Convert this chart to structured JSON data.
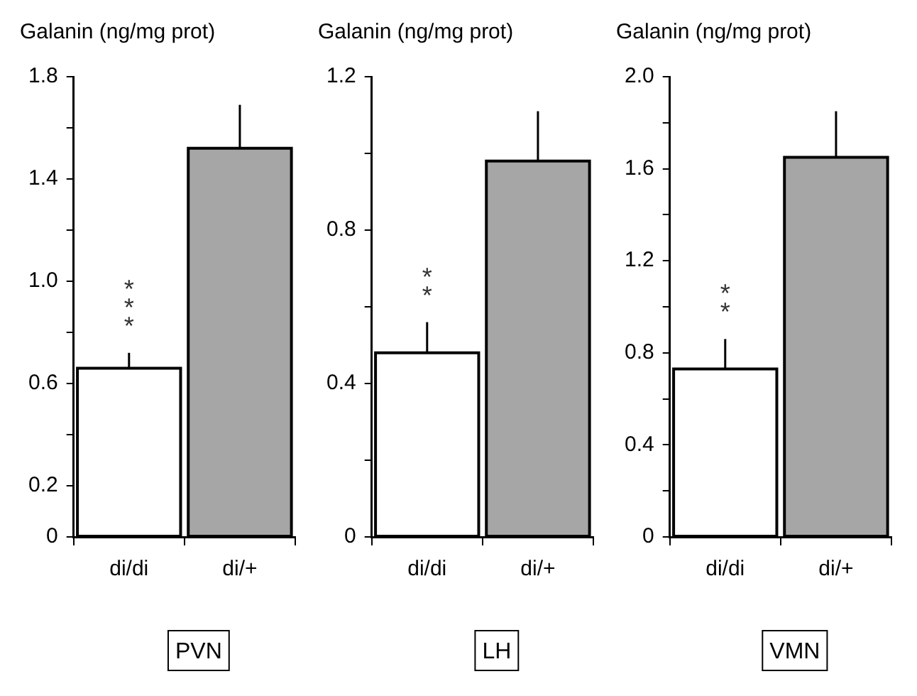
{
  "chart_data": [
    {
      "type": "bar",
      "title": "Galanin (ng/mg prot)",
      "xlabel": "PVN",
      "categories": [
        "di/di",
        "di/+"
      ],
      "values": [
        0.66,
        1.52
      ],
      "colors": [
        "#ffffff",
        "#a6a6a6"
      ],
      "errors": [
        [
          0.66,
          0.72
        ],
        [
          1.52,
          1.69
        ]
      ],
      "ylim": [
        0,
        1.8
      ],
      "yticks": [
        0,
        0.2,
        {
          "value": 0.4,
          "label": null
        },
        0.6,
        {
          "value": 0.8,
          "label": null
        },
        {
          "value": 1,
          "label": "1.0"
        },
        {
          "value": 1.2,
          "label": null
        },
        1.4,
        {
          "value": 1.6,
          "label": null
        },
        1.8
      ],
      "annotations": [
        "***"
      ],
      "grid": false,
      "legend": false
    },
    {
      "type": "bar",
      "title": "Galanin (ng/mg prot)",
      "xlabel": "LH",
      "categories": [
        "di/di",
        "di/+"
      ],
      "values": [
        0.48,
        0.98
      ],
      "colors": [
        "#ffffff",
        "#a6a6a6"
      ],
      "errors": [
        [
          0.48,
          0.56
        ],
        [
          0.98,
          1.11
        ]
      ],
      "ylim": [
        0,
        1.2
      ],
      "yticks": [
        0,
        {
          "value": 0.2,
          "label": null
        },
        0.4,
        {
          "value": 0.6,
          "label": null
        },
        0.8,
        {
          "value": 1,
          "label": null
        },
        1.2
      ],
      "annotations": [
        "**"
      ],
      "grid": false,
      "legend": false
    },
    {
      "type": "bar",
      "title": "Galanin (ng/mg prot)",
      "xlabel": "VMN",
      "categories": [
        "di/di",
        "di/+"
      ],
      "values": [
        0.73,
        1.65
      ],
      "colors": [
        "#ffffff",
        "#a6a6a6"
      ],
      "errors": [
        [
          0.73,
          0.86
        ],
        [
          1.65,
          1.85
        ]
      ],
      "ylim": [
        0,
        2.0
      ],
      "yticks": [
        0,
        {
          "value": 0.2,
          "label": null
        },
        0.4,
        {
          "value": 0.6,
          "label": null
        },
        0.8,
        {
          "value": 1,
          "label": null
        },
        1.2,
        {
          "value": 1.4,
          "label": null
        },
        1.6,
        {
          "value": 1.8,
          "label": null
        },
        {
          "value": 2,
          "label": "2.0"
        }
      ],
      "annotations": [
        "**"
      ],
      "grid": false,
      "legend": false
    }
  ]
}
